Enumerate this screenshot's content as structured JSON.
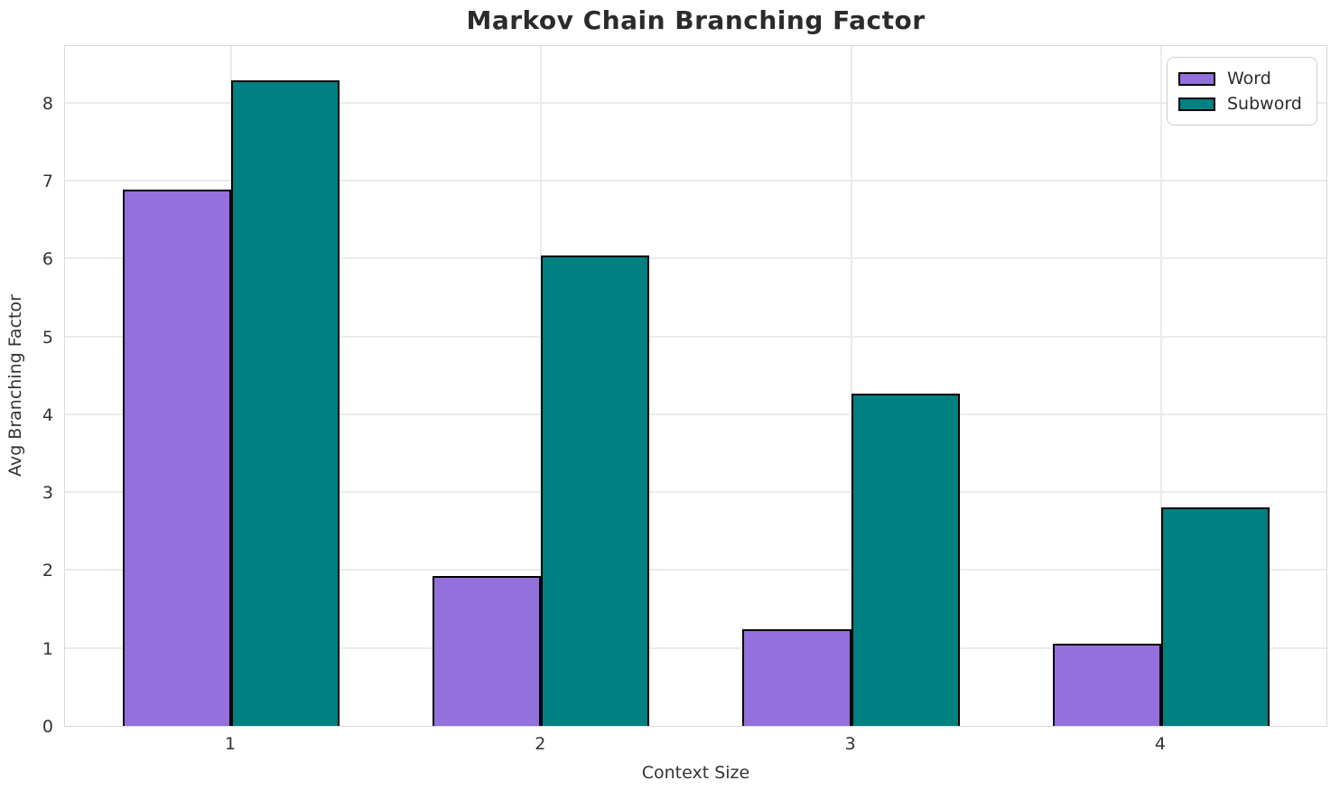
{
  "chart_data": {
    "type": "bar",
    "title": "Markov Chain Branching Factor",
    "xlabel": "Context Size",
    "ylabel": "Avg Branching Factor",
    "categories": [
      "1",
      "2",
      "3",
      "4"
    ],
    "series": [
      {
        "name": "Word",
        "color": "#9370DB",
        "values": [
          6.88,
          1.92,
          1.24,
          1.06
        ]
      },
      {
        "name": "Subword",
        "color": "#008080",
        "values": [
          8.29,
          6.04,
          4.26,
          2.8
        ]
      }
    ],
    "bar_width": 0.35,
    "bar_edge_color": "#000000",
    "yticks": [
      "0",
      "1",
      "2",
      "3",
      "4",
      "5",
      "6",
      "7",
      "8"
    ],
    "ylim": [
      0,
      8.75
    ],
    "xlim": [
      0.464,
      4.539
    ],
    "grid": true,
    "legend_position": "upper right"
  },
  "style": {
    "grid_color": "#ebebeb",
    "spine_color": "#d9d9d9",
    "text_color": "#333333",
    "title_color": "#2b2b2b",
    "background": "#ffffff"
  }
}
